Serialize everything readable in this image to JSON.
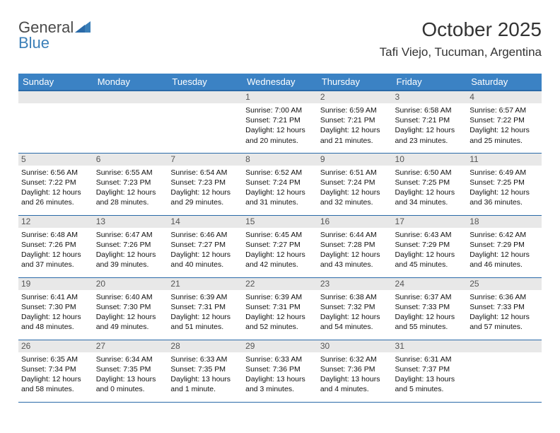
{
  "logo": {
    "text1": "General",
    "text2": "Blue"
  },
  "title": "October 2025",
  "location": "Tafi Viejo, Tucuman, Argentina",
  "colors": {
    "header_bg": "#3b82c4",
    "header_border": "#2a6aa8",
    "daynum_bg": "#e8e8e8",
    "logo_blue": "#3b7fb8",
    "text": "#111111",
    "bg": "#ffffff"
  },
  "day_headers": [
    "Sunday",
    "Monday",
    "Tuesday",
    "Wednesday",
    "Thursday",
    "Friday",
    "Saturday"
  ],
  "weeks": [
    [
      {
        "num": "",
        "sunrise": "",
        "sunset": "",
        "daylight": ""
      },
      {
        "num": "",
        "sunrise": "",
        "sunset": "",
        "daylight": ""
      },
      {
        "num": "",
        "sunrise": "",
        "sunset": "",
        "daylight": ""
      },
      {
        "num": "1",
        "sunrise": "Sunrise: 7:00 AM",
        "sunset": "Sunset: 7:21 PM",
        "daylight": "Daylight: 12 hours and 20 minutes."
      },
      {
        "num": "2",
        "sunrise": "Sunrise: 6:59 AM",
        "sunset": "Sunset: 7:21 PM",
        "daylight": "Daylight: 12 hours and 21 minutes."
      },
      {
        "num": "3",
        "sunrise": "Sunrise: 6:58 AM",
        "sunset": "Sunset: 7:21 PM",
        "daylight": "Daylight: 12 hours and 23 minutes."
      },
      {
        "num": "4",
        "sunrise": "Sunrise: 6:57 AM",
        "sunset": "Sunset: 7:22 PM",
        "daylight": "Daylight: 12 hours and 25 minutes."
      }
    ],
    [
      {
        "num": "5",
        "sunrise": "Sunrise: 6:56 AM",
        "sunset": "Sunset: 7:22 PM",
        "daylight": "Daylight: 12 hours and 26 minutes."
      },
      {
        "num": "6",
        "sunrise": "Sunrise: 6:55 AM",
        "sunset": "Sunset: 7:23 PM",
        "daylight": "Daylight: 12 hours and 28 minutes."
      },
      {
        "num": "7",
        "sunrise": "Sunrise: 6:54 AM",
        "sunset": "Sunset: 7:23 PM",
        "daylight": "Daylight: 12 hours and 29 minutes."
      },
      {
        "num": "8",
        "sunrise": "Sunrise: 6:52 AM",
        "sunset": "Sunset: 7:24 PM",
        "daylight": "Daylight: 12 hours and 31 minutes."
      },
      {
        "num": "9",
        "sunrise": "Sunrise: 6:51 AM",
        "sunset": "Sunset: 7:24 PM",
        "daylight": "Daylight: 12 hours and 32 minutes."
      },
      {
        "num": "10",
        "sunrise": "Sunrise: 6:50 AM",
        "sunset": "Sunset: 7:25 PM",
        "daylight": "Daylight: 12 hours and 34 minutes."
      },
      {
        "num": "11",
        "sunrise": "Sunrise: 6:49 AM",
        "sunset": "Sunset: 7:25 PM",
        "daylight": "Daylight: 12 hours and 36 minutes."
      }
    ],
    [
      {
        "num": "12",
        "sunrise": "Sunrise: 6:48 AM",
        "sunset": "Sunset: 7:26 PM",
        "daylight": "Daylight: 12 hours and 37 minutes."
      },
      {
        "num": "13",
        "sunrise": "Sunrise: 6:47 AM",
        "sunset": "Sunset: 7:26 PM",
        "daylight": "Daylight: 12 hours and 39 minutes."
      },
      {
        "num": "14",
        "sunrise": "Sunrise: 6:46 AM",
        "sunset": "Sunset: 7:27 PM",
        "daylight": "Daylight: 12 hours and 40 minutes."
      },
      {
        "num": "15",
        "sunrise": "Sunrise: 6:45 AM",
        "sunset": "Sunset: 7:27 PM",
        "daylight": "Daylight: 12 hours and 42 minutes."
      },
      {
        "num": "16",
        "sunrise": "Sunrise: 6:44 AM",
        "sunset": "Sunset: 7:28 PM",
        "daylight": "Daylight: 12 hours and 43 minutes."
      },
      {
        "num": "17",
        "sunrise": "Sunrise: 6:43 AM",
        "sunset": "Sunset: 7:29 PM",
        "daylight": "Daylight: 12 hours and 45 minutes."
      },
      {
        "num": "18",
        "sunrise": "Sunrise: 6:42 AM",
        "sunset": "Sunset: 7:29 PM",
        "daylight": "Daylight: 12 hours and 46 minutes."
      }
    ],
    [
      {
        "num": "19",
        "sunrise": "Sunrise: 6:41 AM",
        "sunset": "Sunset: 7:30 PM",
        "daylight": "Daylight: 12 hours and 48 minutes."
      },
      {
        "num": "20",
        "sunrise": "Sunrise: 6:40 AM",
        "sunset": "Sunset: 7:30 PM",
        "daylight": "Daylight: 12 hours and 49 minutes."
      },
      {
        "num": "21",
        "sunrise": "Sunrise: 6:39 AM",
        "sunset": "Sunset: 7:31 PM",
        "daylight": "Daylight: 12 hours and 51 minutes."
      },
      {
        "num": "22",
        "sunrise": "Sunrise: 6:39 AM",
        "sunset": "Sunset: 7:31 PM",
        "daylight": "Daylight: 12 hours and 52 minutes."
      },
      {
        "num": "23",
        "sunrise": "Sunrise: 6:38 AM",
        "sunset": "Sunset: 7:32 PM",
        "daylight": "Daylight: 12 hours and 54 minutes."
      },
      {
        "num": "24",
        "sunrise": "Sunrise: 6:37 AM",
        "sunset": "Sunset: 7:33 PM",
        "daylight": "Daylight: 12 hours and 55 minutes."
      },
      {
        "num": "25",
        "sunrise": "Sunrise: 6:36 AM",
        "sunset": "Sunset: 7:33 PM",
        "daylight": "Daylight: 12 hours and 57 minutes."
      }
    ],
    [
      {
        "num": "26",
        "sunrise": "Sunrise: 6:35 AM",
        "sunset": "Sunset: 7:34 PM",
        "daylight": "Daylight: 12 hours and 58 minutes."
      },
      {
        "num": "27",
        "sunrise": "Sunrise: 6:34 AM",
        "sunset": "Sunset: 7:35 PM",
        "daylight": "Daylight: 13 hours and 0 minutes."
      },
      {
        "num": "28",
        "sunrise": "Sunrise: 6:33 AM",
        "sunset": "Sunset: 7:35 PM",
        "daylight": "Daylight: 13 hours and 1 minute."
      },
      {
        "num": "29",
        "sunrise": "Sunrise: 6:33 AM",
        "sunset": "Sunset: 7:36 PM",
        "daylight": "Daylight: 13 hours and 3 minutes."
      },
      {
        "num": "30",
        "sunrise": "Sunrise: 6:32 AM",
        "sunset": "Sunset: 7:36 PM",
        "daylight": "Daylight: 13 hours and 4 minutes."
      },
      {
        "num": "31",
        "sunrise": "Sunrise: 6:31 AM",
        "sunset": "Sunset: 7:37 PM",
        "daylight": "Daylight: 13 hours and 5 minutes."
      },
      {
        "num": "",
        "sunrise": "",
        "sunset": "",
        "daylight": ""
      }
    ]
  ]
}
